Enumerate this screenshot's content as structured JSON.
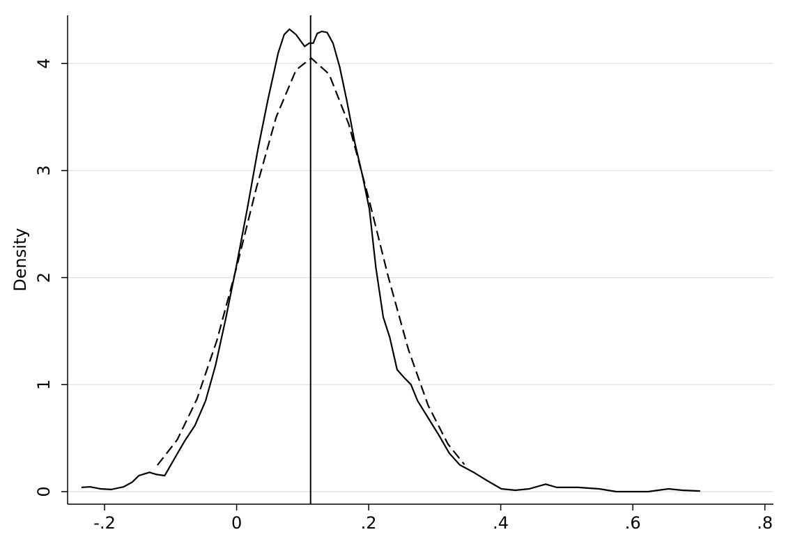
{
  "chart_data": {
    "type": "line",
    "ylabel": "Density",
    "xlim": [
      -0.256,
      0.813
    ],
    "ylim": [
      -0.117,
      4.45
    ],
    "xticks": [
      {
        "value": -0.2,
        "label": "-.2"
      },
      {
        "value": 0,
        "label": "0"
      },
      {
        "value": 0.2,
        "label": ".2"
      },
      {
        "value": 0.4,
        "label": ".4"
      },
      {
        "value": 0.6,
        "label": ".6"
      },
      {
        "value": 0.8,
        "label": ".8"
      }
    ],
    "yticks": [
      0,
      1,
      2,
      3,
      4
    ],
    "grid": true,
    "vline": 0.112,
    "series": [
      {
        "color": "#000000",
        "dashed": false,
        "x": [
          -0.235,
          -0.222,
          -0.206,
          -0.19,
          -0.171,
          -0.158,
          -0.148,
          -0.132,
          -0.121,
          -0.109,
          -0.095,
          -0.079,
          -0.063,
          -0.047,
          -0.032,
          -0.016,
          0,
          0.016,
          0.032,
          0.047,
          0.063,
          0.072,
          0.08,
          0.09,
          0.097,
          0.103,
          0.11,
          0.116,
          0.122,
          0.129,
          0.137,
          0.146,
          0.156,
          0.167,
          0.179,
          0.19,
          0.201,
          0.211,
          0.222,
          0.232,
          0.243,
          0.253,
          0.264,
          0.274,
          0.29,
          0.306,
          0.322,
          0.338,
          0.359,
          0.38,
          0.401,
          0.422,
          0.443,
          0.468,
          0.485,
          0.517,
          0.549,
          0.575,
          0.623,
          0.654,
          0.675,
          0.702
        ],
        "values": [
          0.04,
          0.045,
          0.026,
          0.02,
          0.045,
          0.09,
          0.15,
          0.18,
          0.16,
          0.15,
          0.3,
          0.47,
          0.62,
          0.85,
          1.18,
          1.63,
          2.12,
          2.64,
          3.19,
          3.65,
          4.1,
          4.27,
          4.32,
          4.27,
          4.21,
          4.16,
          4.19,
          4.19,
          4.28,
          4.3,
          4.29,
          4.19,
          3.97,
          3.65,
          3.26,
          2.97,
          2.64,
          2.09,
          1.63,
          1.44,
          1.14,
          1.07,
          1.0,
          0.85,
          0.69,
          0.53,
          0.36,
          0.25,
          0.18,
          0.1,
          0.026,
          0.013,
          0.026,
          0.07,
          0.04,
          0.04,
          0.026,
          0,
          0,
          0.026,
          0.013,
          0.006
        ]
      },
      {
        "color": "#000000",
        "dashed": true,
        "x": [
          -0.12,
          -0.09,
          -0.06,
          -0.03,
          0,
          0.03,
          0.06,
          0.09,
          0.113,
          0.14,
          0.17,
          0.2,
          0.23,
          0.26,
          0.29,
          0.32,
          0.345
        ],
        "values": [
          0.247,
          0.484,
          0.866,
          1.412,
          2.097,
          2.84,
          3.5,
          3.94,
          4.05,
          3.9,
          3.43,
          2.74,
          2.0,
          1.33,
          0.806,
          0.445,
          0.253
        ]
      }
    ]
  }
}
